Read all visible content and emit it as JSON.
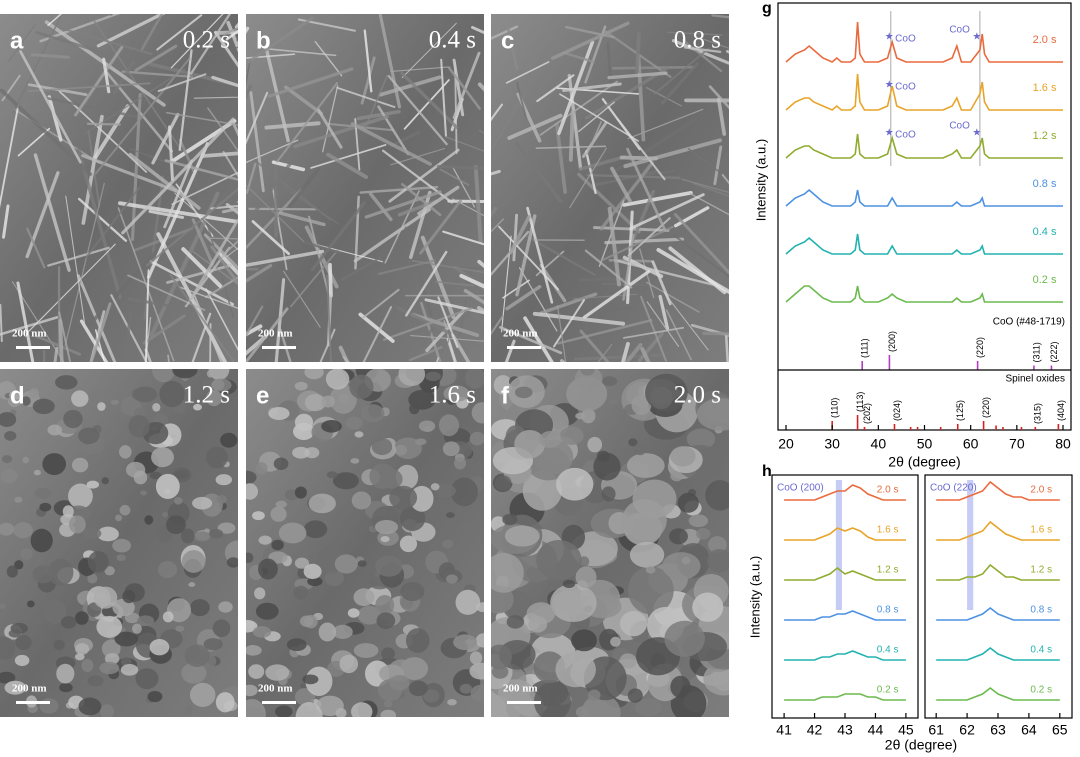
{
  "panels": [
    {
      "letter": "a",
      "label": "0.2 s",
      "scale_bar": "200 nm"
    },
    {
      "letter": "b",
      "label": "0.4 s",
      "scale_bar": "200 nm"
    },
    {
      "letter": "c",
      "label": "0.8 s",
      "scale_bar": "200 nm"
    },
    {
      "letter": "d",
      "label": "1.2 s",
      "scale_bar": "200 nm"
    },
    {
      "letter": "e",
      "label": "1.6 s",
      "scale_bar": "200 nm"
    },
    {
      "letter": "f",
      "label": "2.0 s",
      "scale_bar": "200 nm"
    }
  ],
  "chart_data": [
    {
      "type": "line",
      "panel_label": "g",
      "xlabel": "2θ (degree)",
      "ylabel": "Intensity (a.u.)",
      "xlim": [
        20,
        80
      ],
      "xticks": [
        20,
        30,
        40,
        50,
        60,
        70,
        80
      ],
      "reference_lines": [
        42.7,
        62
      ],
      "x": [
        20,
        22,
        24,
        25,
        26,
        28,
        30,
        31,
        32,
        34,
        35,
        35.5,
        36,
        37,
        38,
        40,
        42,
        43,
        44,
        46,
        48,
        50,
        52,
        54,
        56,
        57,
        58,
        60,
        62,
        62.5,
        63,
        64,
        66,
        68,
        70,
        72,
        74,
        76,
        78,
        80
      ],
      "series": [
        {
          "name": "2.0 s",
          "color": "#ea6a3e",
          "annotations": [
            {
              "text": "CoO",
              "x": 43
            },
            {
              "text": "CoO",
              "x": 62
            }
          ],
          "values": [
            2,
            4,
            5,
            6,
            5,
            3,
            2,
            3,
            2,
            2,
            3,
            12,
            4,
            2,
            2,
            2,
            3,
            7,
            3,
            2,
            2,
            2,
            2,
            2,
            3,
            6,
            2,
            2,
            5,
            9,
            4,
            2,
            2,
            2,
            2,
            2,
            2,
            2,
            2,
            2
          ]
        },
        {
          "name": "1.6 s",
          "color": "#e8a428",
          "annotations": [
            {
              "text": "CoO",
              "x": 43
            }
          ],
          "values": [
            2,
            4,
            5,
            5,
            4,
            3,
            2,
            3,
            2,
            2,
            3,
            11,
            4,
            2,
            2,
            2,
            3,
            8,
            3,
            2,
            2,
            2,
            2,
            2,
            3,
            5,
            2,
            2,
            6,
            9,
            4,
            2,
            2,
            2,
            2,
            2,
            2,
            2,
            2,
            2
          ]
        },
        {
          "name": "1.2 s",
          "color": "#8fac2e",
          "annotations": [
            {
              "text": "CoO",
              "x": 43
            },
            {
              "text": "CoO",
              "x": 62
            }
          ],
          "values": [
            2,
            4,
            5,
            5,
            4,
            3,
            2,
            2,
            2,
            2,
            3,
            8,
            3,
            2,
            2,
            2,
            3,
            7,
            3,
            2,
            2,
            2,
            2,
            2,
            3,
            4,
            2,
            2,
            5,
            7,
            3,
            2,
            2,
            2,
            2,
            2,
            2,
            2,
            2,
            2
          ]
        },
        {
          "name": "0.8 s",
          "color": "#4d92e2",
          "values": [
            2,
            4,
            5,
            6,
            5,
            3,
            2,
            2,
            2,
            2,
            3,
            6,
            3,
            2,
            2,
            2,
            2,
            4,
            2,
            2,
            2,
            2,
            2,
            2,
            2,
            3,
            2,
            2,
            3,
            4,
            2,
            2,
            2,
            2,
            2,
            2,
            2,
            2,
            2,
            2
          ]
        },
        {
          "name": "0.4 s",
          "color": "#22b2b0",
          "values": [
            2,
            4,
            5,
            6,
            5,
            3,
            2,
            2,
            2,
            2,
            3,
            7,
            3,
            2,
            2,
            2,
            2,
            4,
            2,
            2,
            2,
            2,
            2,
            2,
            2,
            3,
            2,
            2,
            3,
            4,
            2,
            2,
            2,
            2,
            2,
            2,
            2,
            2,
            2,
            2
          ]
        },
        {
          "name": "0.2 s",
          "color": "#6cba4e",
          "values": [
            2,
            4,
            6,
            6,
            5,
            3,
            2,
            2,
            2,
            2,
            3,
            6,
            3,
            2,
            2,
            2,
            3,
            4,
            3,
            2,
            2,
            2,
            2,
            2,
            2,
            3,
            2,
            2,
            3,
            4,
            2,
            2,
            2,
            2,
            2,
            2,
            2,
            2,
            2,
            2
          ]
        }
      ],
      "references": [
        {
          "name": "CoO (#48-1719)",
          "color": "#b33cc2",
          "peaks": [
            {
              "x": 36.5,
              "height": 3,
              "label": "(111)"
            },
            {
              "x": 42.4,
              "height": 5,
              "label": "(200)"
            },
            {
              "x": 61.5,
              "height": 3,
              "label": "(220)"
            },
            {
              "x": 73.7,
              "height": 1.5,
              "label": "(311)"
            },
            {
              "x": 77.5,
              "height": 1.5,
              "label": "(222)"
            }
          ]
        },
        {
          "name": "Spinel oxides",
          "color": "#d42222",
          "peaks": [
            {
              "x": 30,
              "height": 3,
              "label": "(110)"
            },
            {
              "x": 35.5,
              "height": 5,
              "label": "(113)"
            },
            {
              "x": 37,
              "height": 1,
              "label": "(202)"
            },
            {
              "x": 43.5,
              "height": 2,
              "label": "(024)"
            },
            {
              "x": 47,
              "height": 1
            },
            {
              "x": 48.5,
              "height": 1
            },
            {
              "x": 53.5,
              "height": 1
            },
            {
              "x": 57.2,
              "height": 2,
              "label": "(125)"
            },
            {
              "x": 62.8,
              "height": 3,
              "label": "(220)"
            },
            {
              "x": 65.5,
              "height": 1.5
            },
            {
              "x": 67,
              "height": 1
            },
            {
              "x": 71,
              "height": 1
            },
            {
              "x": 74,
              "height": 1,
              "label": "(315)"
            },
            {
              "x": 79,
              "height": 2,
              "label": "(404)"
            }
          ]
        }
      ]
    },
    {
      "type": "line",
      "panel_label": "h",
      "xlabel": "2θ (degree)",
      "ylabel": "Intensity (a.u.)",
      "title": "CoO (200)",
      "xlim": [
        40.8,
        45.2
      ],
      "xticks": [
        41,
        42,
        43,
        44,
        45
      ],
      "highlight": [
        42.7,
        42.9
      ],
      "x": [
        41,
        41.25,
        41.5,
        41.75,
        42,
        42.25,
        42.5,
        42.75,
        43,
        43.25,
        43.5,
        43.75,
        44,
        44.25,
        44.5,
        44.75,
        45
      ],
      "series": [
        {
          "name": "2.0 s",
          "color": "#ea6a3e",
          "values": [
            2,
            2,
            2,
            2,
            2,
            2.5,
            3,
            3.5,
            3.5,
            4.5,
            4,
            3,
            2.5,
            2,
            2,
            2,
            2
          ]
        },
        {
          "name": "1.6 s",
          "color": "#e8a428",
          "values": [
            2,
            2,
            2,
            2,
            2,
            2.5,
            3,
            4,
            3.5,
            4,
            3.5,
            2.5,
            2,
            2,
            2,
            2,
            2
          ]
        },
        {
          "name": "1.2 s",
          "color": "#8fac2e",
          "values": [
            2,
            2,
            2,
            2,
            2,
            2.5,
            3,
            4,
            3,
            3.5,
            3,
            2.5,
            2,
            2,
            2,
            2,
            2
          ]
        },
        {
          "name": "0.8 s",
          "color": "#4d92e2",
          "values": [
            2,
            2,
            2,
            2,
            2,
            2.5,
            2.5,
            3,
            3,
            3.5,
            3,
            2.5,
            2,
            2,
            2,
            2,
            2
          ]
        },
        {
          "name": "0.4 s",
          "color": "#22b2b0",
          "values": [
            2,
            2,
            2,
            2,
            2,
            2.5,
            2.5,
            3,
            3,
            3.5,
            3,
            2.5,
            2.5,
            2,
            2,
            2,
            2
          ]
        },
        {
          "name": "0.2 s",
          "color": "#6cba4e",
          "values": [
            2,
            2,
            2,
            2,
            2,
            2.5,
            2.5,
            2.5,
            3,
            3,
            3,
            2.5,
            2.5,
            2,
            2,
            2,
            2
          ]
        }
      ]
    },
    {
      "type": "line",
      "title": "CoO (220)",
      "xlim": [
        60.8,
        65.2
      ],
      "xticks": [
        61,
        62,
        63,
        64,
        65
      ],
      "highlight": [
        62,
        62.2
      ],
      "x": [
        61,
        61.25,
        61.5,
        61.75,
        62,
        62.25,
        62.5,
        62.75,
        63,
        63.25,
        63.5,
        63.75,
        64,
        64.25,
        64.5,
        64.75,
        65
      ],
      "series": [
        {
          "name": "2.0 s",
          "color": "#ea6a3e",
          "values": [
            2,
            2,
            2,
            2,
            2.5,
            3,
            3.5,
            5,
            4,
            3,
            2.5,
            2.5,
            2,
            2,
            2,
            2,
            2
          ]
        },
        {
          "name": "1.6 s",
          "color": "#e8a428",
          "values": [
            2,
            2,
            2,
            2,
            2.5,
            3,
            3.5,
            5,
            4,
            3,
            2.5,
            2,
            2,
            2,
            2,
            2,
            2
          ]
        },
        {
          "name": "1.2 s",
          "color": "#8fac2e",
          "values": [
            2,
            2,
            2,
            2,
            2.5,
            2.5,
            3,
            4.5,
            3.5,
            2.5,
            2.5,
            2,
            2,
            2,
            2,
            2,
            2
          ]
        },
        {
          "name": "0.8 s",
          "color": "#4d92e2",
          "values": [
            2,
            2,
            2,
            2,
            2,
            2.5,
            3,
            4,
            3,
            2.5,
            2,
            2,
            2,
            2,
            2,
            2,
            2
          ]
        },
        {
          "name": "0.4 s",
          "color": "#22b2b0",
          "values": [
            2,
            2,
            2,
            2,
            2,
            2.5,
            3,
            4,
            3,
            2.5,
            2,
            2,
            2,
            2,
            2,
            2,
            2
          ]
        },
        {
          "name": "0.2 s",
          "color": "#6cba4e",
          "values": [
            2,
            2,
            2,
            2,
            2,
            2.5,
            3,
            4,
            3,
            2.5,
            2,
            2,
            2,
            2,
            2,
            2,
            2
          ]
        }
      ]
    }
  ]
}
